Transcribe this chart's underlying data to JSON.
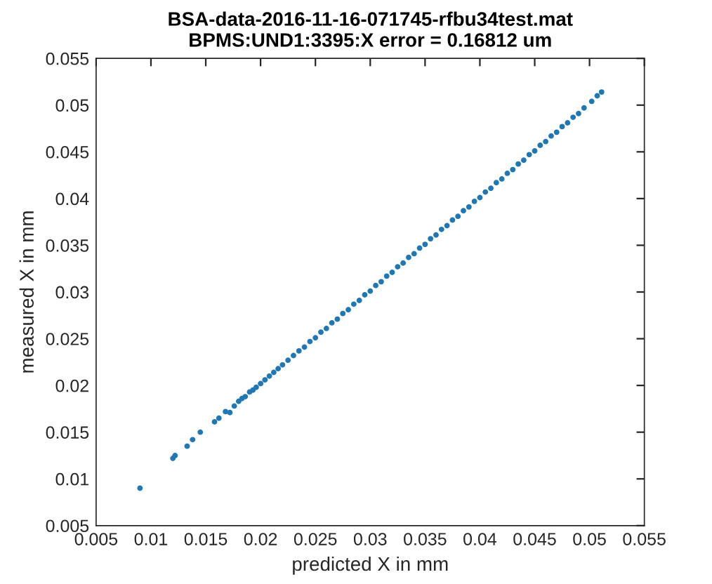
{
  "chart_data": {
    "type": "scatter",
    "title": "BSA-data-2016-11-16-071745-rfbu34test.mat\nBPMS:UND1:3395:X error = 0.16812 um",
    "xlabel": "predicted X in mm",
    "ylabel": "measured X in mm",
    "x": [
      0.009,
      0.012,
      0.0122,
      0.0133,
      0.0138,
      0.0145,
      0.0158,
      0.0162,
      0.0168,
      0.0172,
      0.0176,
      0.018,
      0.0183,
      0.0186,
      0.019,
      0.0193,
      0.0196,
      0.02,
      0.0204,
      0.0208,
      0.0212,
      0.0216,
      0.022,
      0.0225,
      0.023,
      0.0235,
      0.024,
      0.0245,
      0.025,
      0.0255,
      0.026,
      0.0265,
      0.027,
      0.0275,
      0.028,
      0.0285,
      0.029,
      0.0295,
      0.03,
      0.0305,
      0.031,
      0.0315,
      0.032,
      0.0325,
      0.033,
      0.0335,
      0.034,
      0.0345,
      0.035,
      0.0355,
      0.036,
      0.0365,
      0.037,
      0.0375,
      0.038,
      0.0385,
      0.039,
      0.0395,
      0.04,
      0.0405,
      0.041,
      0.0415,
      0.042,
      0.0425,
      0.043,
      0.0435,
      0.044,
      0.0445,
      0.045,
      0.0455,
      0.046,
      0.0465,
      0.047,
      0.0475,
      0.048,
      0.0485,
      0.049,
      0.0495,
      0.0502,
      0.0507,
      0.0511
    ],
    "values": [
      0.009,
      0.0122,
      0.0125,
      0.0135,
      0.0142,
      0.015,
      0.0161,
      0.0165,
      0.0172,
      0.0171,
      0.0178,
      0.0183,
      0.0186,
      0.0188,
      0.0193,
      0.0195,
      0.0198,
      0.0202,
      0.0206,
      0.021,
      0.0214,
      0.0218,
      0.0222,
      0.0227,
      0.0232,
      0.0237,
      0.0241,
      0.0247,
      0.0251,
      0.0257,
      0.0261,
      0.0267,
      0.0271,
      0.0277,
      0.0281,
      0.0287,
      0.0291,
      0.0297,
      0.0301,
      0.0307,
      0.0311,
      0.0317,
      0.0321,
      0.0327,
      0.0331,
      0.0337,
      0.0341,
      0.0347,
      0.0351,
      0.0357,
      0.0361,
      0.0367,
      0.0371,
      0.0377,
      0.0381,
      0.0387,
      0.0391,
      0.0397,
      0.0401,
      0.0407,
      0.0411,
      0.0417,
      0.0421,
      0.0427,
      0.0431,
      0.0437,
      0.0441,
      0.0447,
      0.0451,
      0.0457,
      0.0461,
      0.0467,
      0.0471,
      0.0477,
      0.0481,
      0.0487,
      0.0491,
      0.0497,
      0.0504,
      0.051,
      0.0514
    ],
    "color": "#1f77b4",
    "marker": "circle",
    "xlim": [
      0.005,
      0.055
    ],
    "ylim": [
      0.005,
      0.055
    ],
    "xticks": [
      0.005,
      0.01,
      0.015,
      0.02,
      0.025,
      0.03,
      0.035,
      0.04,
      0.045,
      0.05,
      0.055
    ],
    "yticks": [
      0.005,
      0.01,
      0.015,
      0.02,
      0.025,
      0.03,
      0.035,
      0.04,
      0.045,
      0.05,
      0.055
    ],
    "grid": false
  }
}
